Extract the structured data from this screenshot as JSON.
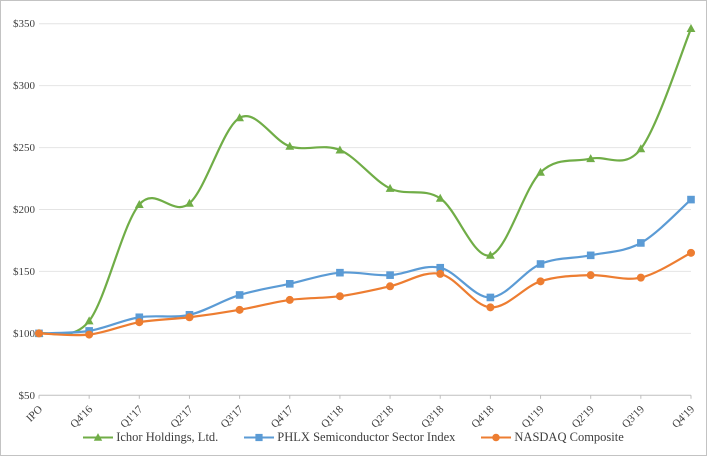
{
  "chart_data": {
    "type": "line",
    "title": "",
    "categories": [
      "IPO",
      "Q4'16",
      "Q1'17",
      "Q2'17",
      "Q3'17",
      "Q4'17",
      "Q1'18",
      "Q2'18",
      "Q3'18",
      "Q4'18",
      "Q1'19",
      "Q2'19",
      "Q3'19",
      "Q4'19"
    ],
    "series": [
      {
        "name": "Ichor Holdings, Ltd.",
        "marker": "triangle",
        "color": "#70AD47",
        "values": [
          100,
          110,
          204,
          205,
          274,
          251,
          248,
          217,
          209,
          163,
          230,
          241,
          249,
          346
        ]
      },
      {
        "name": "PHLX Semiconductor Sector Index",
        "marker": "square",
        "color": "#5B9BD5",
        "values": [
          100,
          102,
          113,
          115,
          131,
          140,
          149,
          147,
          153,
          129,
          156,
          163,
          173,
          208
        ]
      },
      {
        "name": "NASDAQ Composite",
        "marker": "circle",
        "color": "#ED7D31",
        "values": [
          100,
          99,
          109,
          113,
          119,
          127,
          130,
          138,
          148,
          121,
          142,
          147,
          145,
          165
        ]
      }
    ],
    "y_ticks": [
      {
        "label": "$50",
        "value": 50
      },
      {
        "label": "$100",
        "value": 100
      },
      {
        "label": "$150",
        "value": 150
      },
      {
        "label": "$200",
        "value": 200
      },
      {
        "label": "$250",
        "value": 250
      },
      {
        "label": "$300",
        "value": 300
      },
      {
        "label": "$350",
        "value": 350
      }
    ],
    "ylim": [
      50,
      350
    ],
    "grid": true,
    "smooth_lines": true,
    "legend_position": "bottom",
    "text_color": "#404040"
  }
}
